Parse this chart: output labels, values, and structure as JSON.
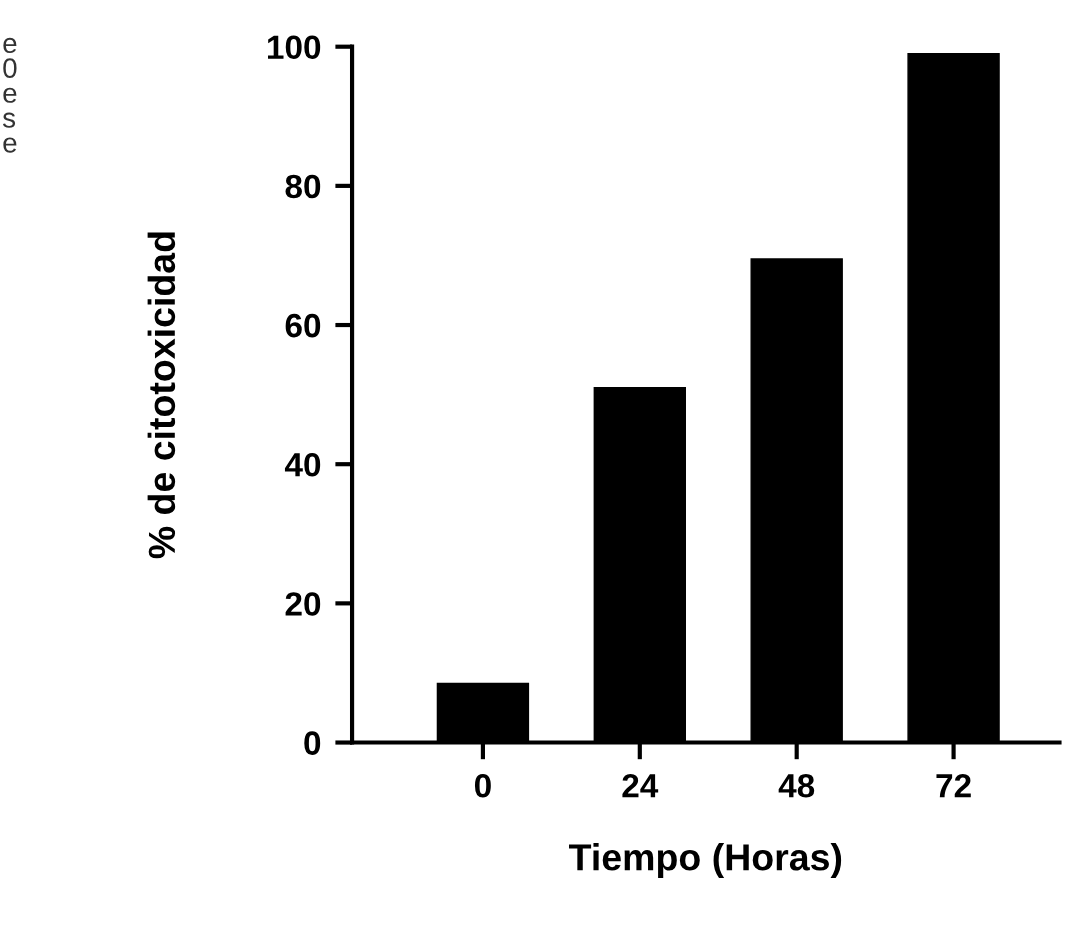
{
  "chart_data": {
    "type": "bar",
    "xlabel": "Tiempo (Horas)",
    "ylabel": "% de citotoxicidad",
    "categories": [
      "0",
      "24",
      "48",
      "72"
    ],
    "values": [
      8.5,
      51,
      69.5,
      99
    ],
    "color": "#000000",
    "ylim": [
      0,
      100
    ],
    "yticks": [
      0,
      20,
      40,
      60,
      80,
      100
    ],
    "grid": false,
    "legend": false,
    "annotations": [
      "e\n0\ne\ns\ne"
    ]
  }
}
